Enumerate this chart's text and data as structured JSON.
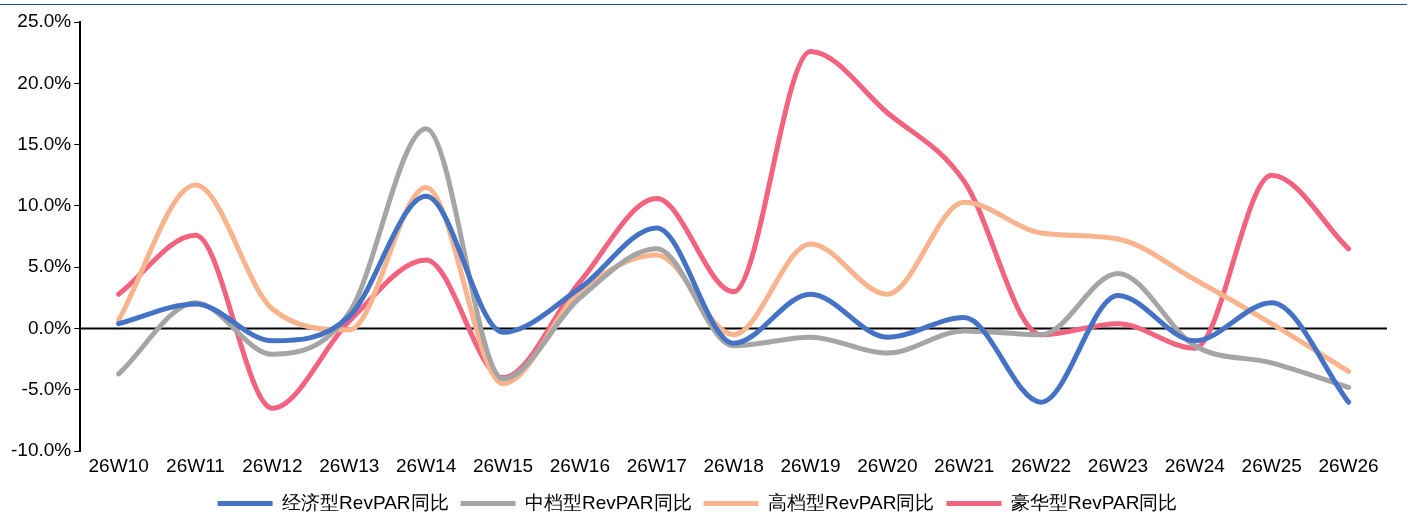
{
  "chart_data": {
    "type": "line",
    "categories": [
      "26W10",
      "26W11",
      "26W12",
      "26W13",
      "26W14",
      "26W15",
      "26W16",
      "26W17",
      "26W18",
      "26W19",
      "26W20",
      "26W21",
      "26W22",
      "26W23",
      "26W24",
      "26W25",
      "26W26"
    ],
    "series": [
      {
        "name": "经济型RevPAR同比",
        "color": "#4472c4",
        "values": [
          0.4,
          2.0,
          -1.0,
          1.0,
          10.8,
          -0.3,
          3.3,
          8.2,
          -1.2,
          2.8,
          -0.7,
          0.9,
          -6.0,
          2.7,
          -1.0,
          2.1,
          -6.0
        ]
      },
      {
        "name": "中档型RevPAR同比",
        "color": "#a5a5a5",
        "values": [
          -3.7,
          2.1,
          -2.1,
          1.3,
          16.3,
          -4.1,
          2.5,
          6.5,
          -1.4,
          -0.7,
          -2.0,
          -0.2,
          -0.5,
          4.5,
          -1.4,
          -2.8,
          -4.8
        ]
      },
      {
        "name": "高档型RevPAR同比",
        "color": "#f8b48c",
        "values": [
          0.7,
          11.7,
          1.6,
          -0.1,
          11.5,
          -4.5,
          3.0,
          6.0,
          -0.5,
          6.9,
          2.8,
          10.3,
          7.8,
          7.3,
          4.0,
          0.4,
          -3.5
        ]
      },
      {
        "name": "豪华型RevPAR同比",
        "color": "#f2637f",
        "values": [
          2.8,
          7.6,
          -6.5,
          0.6,
          5.6,
          -4.0,
          3.8,
          10.6,
          3.0,
          22.6,
          17.6,
          12.0,
          -0.5,
          0.4,
          -1.6,
          12.5,
          6.5
        ]
      }
    ],
    "ylim": [
      -10,
      25
    ],
    "yticks": [
      {
        "value": -10,
        "label": "-10.0%"
      },
      {
        "value": -5,
        "label": "-5.0%"
      },
      {
        "value": 0,
        "label": "0.0%"
      },
      {
        "value": 5,
        "label": "5.0%"
      },
      {
        "value": 10,
        "label": "10.0%"
      },
      {
        "value": 15,
        "label": "15.0%"
      },
      {
        "value": 20,
        "label": "20.0%"
      },
      {
        "value": 25,
        "label": "25.0%"
      }
    ],
    "ref_lines": [
      {
        "axis": "y",
        "value": 0,
        "color": "#000000"
      }
    ],
    "grid": false,
    "legend": "bottom",
    "marker": "none",
    "line_style": "solid"
  }
}
